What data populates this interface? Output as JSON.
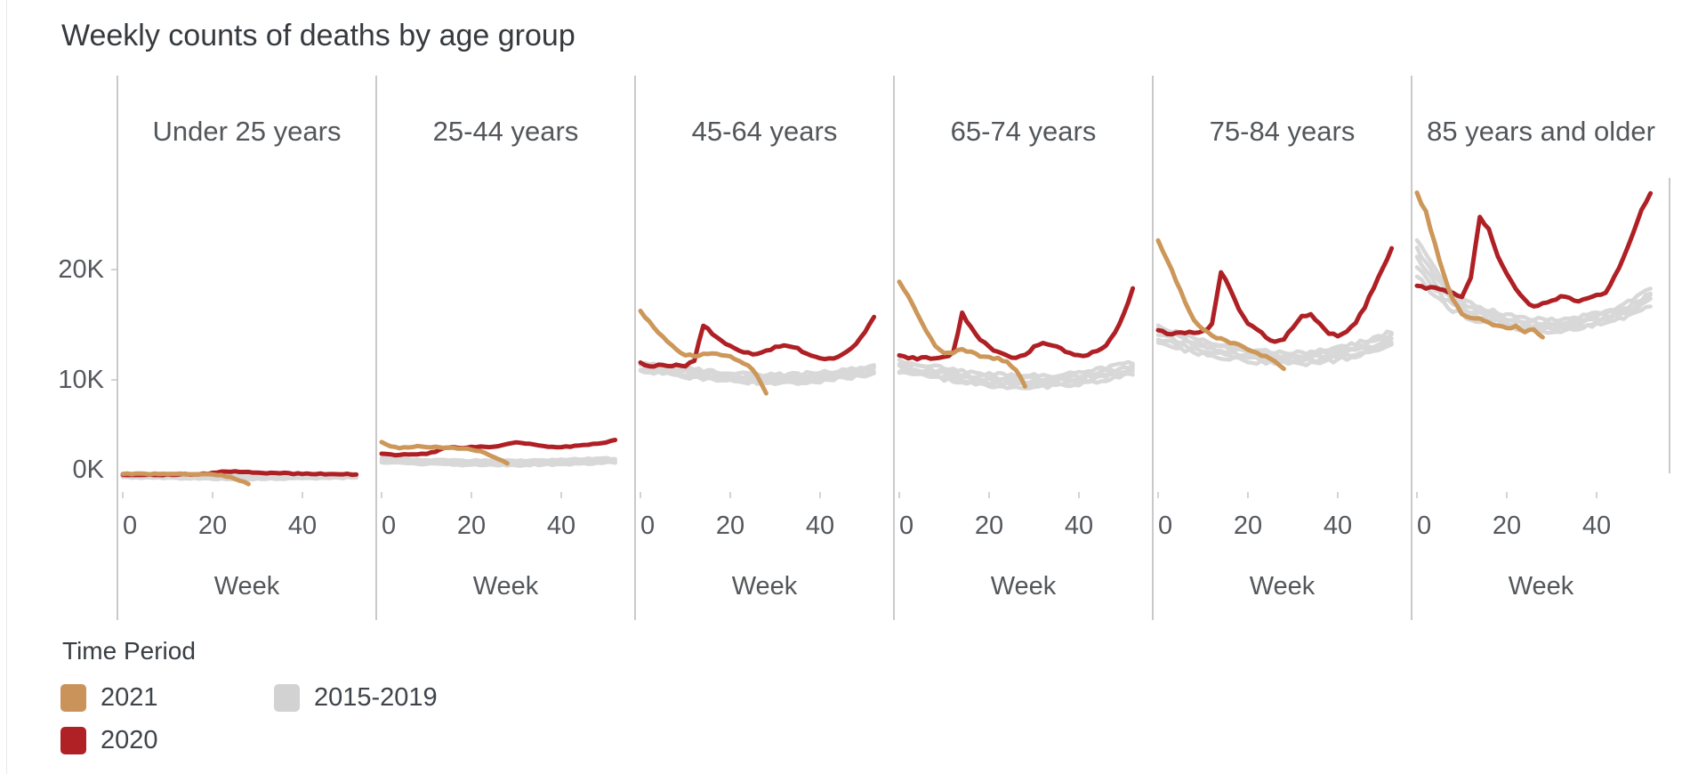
{
  "chart_data": {
    "type": "line",
    "title": "Weekly counts of deaths by age group",
    "xlabel": "Week",
    "x_ticks": [
      0,
      20,
      40
    ],
    "y_ticks": [
      {
        "label": "0K",
        "value_k": 0
      },
      {
        "label": "10K",
        "value_k": 10
      },
      {
        "label": "20K",
        "value_k": 20
      }
    ],
    "ylim_k": [
      0,
      37.5
    ],
    "xlim_weeks": [
      0,
      53
    ],
    "grid": "off",
    "legend": {
      "title": "Time Period",
      "position": "bottom-left",
      "items": [
        {
          "label": "2021",
          "color": "#C9935A"
        },
        {
          "label": "2020",
          "color": "#B02126"
        },
        {
          "label": "2015-2019",
          "color": "#D2D2D2"
        }
      ]
    },
    "series_colors": {
      "y2021": "#CC9759",
      "y2020": "#AF2025",
      "gray": "#D8D8D8"
    },
    "sampling": {
      "y2021_weeks": "0-28 step 2",
      "y2020_weeks": "0-52 step 2",
      "gray_weeks": "0-52 step 4",
      "gray_lines_per_panel": 5
    },
    "panels": [
      {
        "label": "Under 25 years",
        "noise": 0.04,
        "y2021": [
          1.5,
          1.48,
          1.5,
          1.45,
          1.5,
          1.46,
          1.5,
          1.44,
          1.42,
          1.45,
          1.4,
          1.34,
          1.18,
          0.9,
          0.58
        ],
        "y2020": [
          1.38,
          1.4,
          1.35,
          1.42,
          1.36,
          1.42,
          1.4,
          1.46,
          1.42,
          1.48,
          1.55,
          1.72,
          1.7,
          1.66,
          1.62,
          1.6,
          1.56,
          1.6,
          1.54,
          1.5,
          1.5,
          1.46,
          1.5,
          1.44,
          1.42,
          1.46,
          1.4
        ],
        "gray_base": [
          1.32,
          1.3,
          1.27,
          1.25,
          1.22,
          1.2,
          1.18,
          1.18,
          1.18,
          1.2,
          1.22,
          1.25,
          1.28,
          1.32
        ],
        "gray_hw": [
          0.16,
          0.16,
          0.16,
          0.16,
          0.16,
          0.16,
          0.16,
          0.16,
          0.16,
          0.16,
          0.16,
          0.16,
          0.16,
          0.16
        ]
      },
      {
        "label": "25-44 years",
        "noise": 0.05,
        "y2021": [
          4.4,
          4.0,
          3.8,
          3.92,
          4.0,
          3.95,
          3.9,
          3.84,
          3.8,
          3.76,
          3.7,
          3.52,
          3.2,
          2.86,
          2.45
        ],
        "y2020": [
          3.3,
          3.24,
          3.2,
          3.26,
          3.22,
          3.3,
          3.5,
          3.8,
          3.9,
          3.86,
          3.9,
          3.94,
          3.9,
          3.96,
          4.2,
          4.3,
          4.24,
          4.1,
          4.0,
          3.94,
          3.9,
          3.96,
          4.02,
          4.1,
          4.22,
          4.36,
          4.6
        ],
        "gray_base": [
          2.7,
          2.66,
          2.6,
          2.58,
          2.54,
          2.5,
          2.48,
          2.48,
          2.5,
          2.54,
          2.58,
          2.62,
          2.66,
          2.72
        ],
        "gray_hw": [
          0.22,
          0.22,
          0.22,
          0.22,
          0.22,
          0.22,
          0.22,
          0.22,
          0.22,
          0.22,
          0.22,
          0.22,
          0.22,
          0.22
        ]
      },
      {
        "label": "45-64 years",
        "noise": 0.1,
        "y2021": [
          16.2,
          15.3,
          14.3,
          13.4,
          12.7,
          12.2,
          12.2,
          12.35,
          12.4,
          12.3,
          12.1,
          11.8,
          11.3,
          10.4,
          8.7
        ],
        "y2020": [
          11.5,
          11.2,
          11.3,
          11.2,
          11.3,
          11.2,
          11.8,
          15.0,
          14.2,
          13.5,
          13.0,
          12.6,
          12.4,
          12.3,
          12.6,
          13.0,
          13.2,
          13.0,
          12.6,
          12.3,
          12.0,
          11.9,
          12.1,
          12.6,
          13.3,
          14.4,
          15.7
        ],
        "gray_base": [
          11.1,
          11.0,
          10.8,
          10.6,
          10.45,
          10.3,
          10.2,
          10.15,
          10.1,
          10.2,
          10.3,
          10.5,
          10.7,
          11.0
        ],
        "gray_hw": [
          0.4,
          0.4,
          0.4,
          0.4,
          0.4,
          0.4,
          0.4,
          0.4,
          0.4,
          0.4,
          0.4,
          0.4,
          0.4,
          0.4
        ]
      },
      {
        "label": "65-74 years",
        "noise": 0.11,
        "y2021": [
          18.8,
          17.6,
          16.0,
          14.4,
          13.1,
          12.4,
          12.5,
          12.7,
          12.5,
          12.2,
          12.0,
          11.9,
          11.6,
          10.8,
          9.5
        ],
        "y2020": [
          12.2,
          12.0,
          11.9,
          12.0,
          11.9,
          12.0,
          12.4,
          16.0,
          14.8,
          13.6,
          13.0,
          12.5,
          12.2,
          12.0,
          12.2,
          13.0,
          13.4,
          13.2,
          12.8,
          12.4,
          12.2,
          12.3,
          12.6,
          13.2,
          14.3,
          16.0,
          18.3
        ],
        "gray_base": [
          11.2,
          11.0,
          10.7,
          10.45,
          10.2,
          10.05,
          9.95,
          9.9,
          9.9,
          10.0,
          10.2,
          10.45,
          10.75,
          11.1
        ],
        "gray_hw": [
          0.55,
          0.55,
          0.55,
          0.55,
          0.55,
          0.55,
          0.55,
          0.55,
          0.55,
          0.55,
          0.55,
          0.55,
          0.55,
          0.55
        ]
      },
      {
        "label": "75-84 years",
        "noise": 0.12,
        "y2021": [
          22.6,
          20.9,
          19.0,
          17.1,
          15.5,
          14.5,
          14.0,
          13.7,
          13.4,
          13.1,
          12.8,
          12.5,
          12.1,
          11.6,
          10.9
        ],
        "y2020": [
          14.5,
          14.2,
          14.3,
          14.2,
          14.3,
          14.4,
          15.0,
          19.8,
          18.3,
          16.3,
          15.2,
          14.5,
          13.9,
          13.5,
          13.7,
          14.8,
          15.8,
          15.9,
          15.0,
          14.2,
          14.0,
          14.3,
          15.2,
          16.6,
          18.3,
          20.1,
          21.9
        ],
        "gray_base": [
          14.2,
          13.7,
          13.2,
          12.85,
          12.55,
          12.3,
          12.1,
          12.0,
          12.0,
          12.15,
          12.4,
          12.75,
          13.2,
          13.8
        ],
        "gray_hw": [
          0.8,
          0.75,
          0.7,
          0.65,
          0.6,
          0.6,
          0.55,
          0.55,
          0.55,
          0.55,
          0.6,
          0.6,
          0.65,
          0.7
        ]
      },
      {
        "label": "85 years and older",
        "noise": 0.12,
        "y2021": [
          26.9,
          25.2,
          22.3,
          19.5,
          17.3,
          16.0,
          15.6,
          15.5,
          15.2,
          14.9,
          14.6,
          14.8,
          14.4,
          14.5,
          13.9
        ],
        "y2020": [
          18.6,
          18.2,
          18.4,
          18.1,
          17.9,
          17.6,
          19.3,
          24.8,
          23.6,
          21.2,
          19.7,
          18.2,
          17.2,
          16.6,
          16.9,
          17.3,
          17.5,
          17.4,
          17.2,
          17.4,
          17.6,
          18.0,
          19.3,
          21.0,
          23.2,
          25.5,
          26.9
        ],
        "gray_base": [
          21.3,
          18.9,
          17.2,
          16.3,
          15.8,
          15.4,
          15.1,
          14.95,
          15.0,
          15.2,
          15.55,
          16.0,
          16.6,
          17.6
        ],
        "gray_hw": [
          1.8,
          1.3,
          0.9,
          0.75,
          0.65,
          0.6,
          0.55,
          0.55,
          0.55,
          0.55,
          0.6,
          0.6,
          0.65,
          0.8
        ]
      }
    ]
  }
}
